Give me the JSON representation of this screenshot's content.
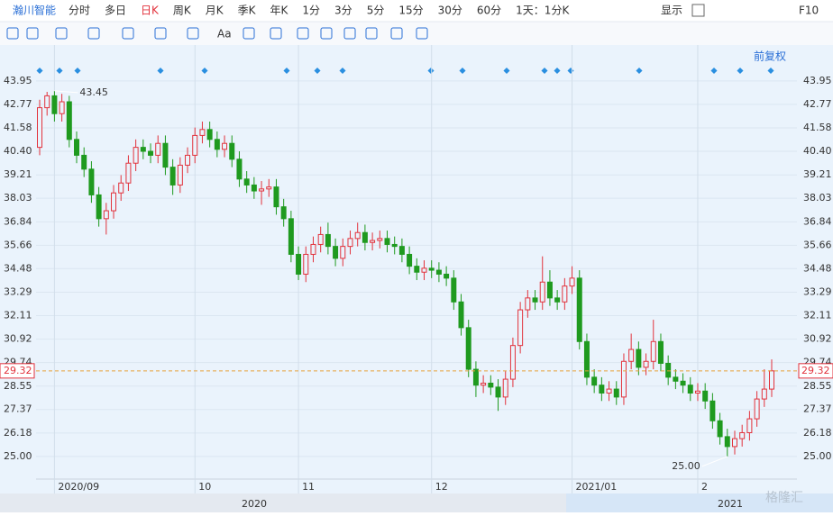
{
  "toolbar": {
    "stock": "瀚川智能",
    "tabs": [
      "分时",
      "多日",
      "日K",
      "周K",
      "月K",
      "季K",
      "年K",
      "1分",
      "3分",
      "5分",
      "15分",
      "30分",
      "60分",
      "1天：1分K"
    ],
    "display": "显示",
    "f10": "F10"
  },
  "toolbar2": {
    "font": "Aa",
    "adjust": "前复权"
  },
  "timeline": [
    "2020",
    "2021"
  ],
  "watermark": "格隆汇",
  "chart_data": {
    "type": "candlestick",
    "up_color": "#e2323c",
    "down_color": "#1f9a1f",
    "grid": true,
    "ylim": [
      23.95,
      44.4
    ],
    "yticks": [
      43.95,
      42.77,
      41.58,
      {
        "value": 40.4,
        "label": "40.40"
      },
      39.21,
      38.03,
      36.84,
      35.66,
      34.48,
      33.29,
      32.11,
      30.92,
      29.74,
      28.55,
      27.37,
      26.18,
      {
        "value": 25,
        "label": "25.00"
      }
    ],
    "last_price": 29.32,
    "annotations": [
      {
        "text": "43.45",
        "index": 2
      },
      {
        "text": "25.00",
        "index": 93
      }
    ],
    "categories": [
      null,
      null,
      "2020/09",
      null,
      null,
      null,
      null,
      null,
      null,
      null,
      null,
      null,
      null,
      null,
      null,
      null,
      null,
      null,
      null,
      null,
      null,
      "10",
      null,
      null,
      null,
      null,
      null,
      null,
      null,
      null,
      null,
      null,
      null,
      null,
      null,
      "11",
      null,
      null,
      null,
      null,
      null,
      null,
      null,
      null,
      null,
      null,
      null,
      null,
      null,
      null,
      null,
      null,
      null,
      "12",
      null,
      null,
      null,
      null,
      null,
      null,
      null,
      null,
      null,
      null,
      null,
      null,
      null,
      null,
      null,
      null,
      null,
      null,
      "2021/01",
      null,
      null,
      null,
      null,
      null,
      null,
      null,
      null,
      null,
      null,
      null,
      null,
      null,
      null,
      null,
      null,
      "2",
      null,
      null,
      null,
      null,
      null,
      null,
      null,
      null,
      null,
      null
    ],
    "open": [
      40.6,
      42.6,
      43.2,
      42.3,
      42.9,
      41.0,
      40.2,
      39.5,
      38.2,
      37.0,
      37.4,
      38.3,
      38.8,
      39.8,
      40.6,
      40.4,
      40.2,
      40.8,
      39.6,
      38.7,
      39.7,
      40.2,
      41.2,
      41.5,
      41.0,
      40.5,
      40.8,
      40.0,
      39.0,
      38.7,
      38.4,
      38.5,
      38.6,
      37.6,
      37.0,
      35.2,
      34.2,
      35.2,
      35.7,
      36.2,
      35.6,
      35.0,
      35.6,
      36.0,
      36.3,
      35.8,
      35.9,
      36.0,
      35.7,
      35.6,
      35.2,
      34.6,
      34.3,
      34.5,
      34.4,
      34.2,
      34.0,
      32.8,
      31.5,
      29.4,
      28.6,
      28.7,
      28.5,
      28.0,
      28.9,
      30.6,
      32.4,
      33.0,
      32.8,
      33.8,
      33.0,
      32.8,
      33.6,
      34.0,
      30.8,
      29.0,
      28.6,
      28.2,
      28.4,
      28.0,
      29.8,
      30.4,
      29.5,
      29.8,
      30.8,
      29.7,
      29.0,
      28.8,
      28.6,
      28.2,
      28.3,
      27.8,
      26.8,
      26.0,
      25.5,
      25.9,
      26.2,
      26.9,
      27.9,
      28.4
    ],
    "high": [
      43.0,
      43.4,
      43.45,
      43.3,
      43.2,
      41.4,
      40.6,
      39.9,
      38.6,
      37.8,
      38.7,
      39.2,
      40.2,
      41.0,
      41.0,
      40.8,
      41.2,
      41.2,
      40.0,
      40.1,
      40.6,
      41.6,
      41.9,
      41.9,
      41.4,
      41.2,
      41.2,
      40.4,
      39.4,
      39.1,
      38.9,
      39.0,
      39.0,
      38.0,
      37.4,
      35.6,
      35.6,
      36.1,
      36.6,
      36.8,
      36.0,
      36.0,
      36.4,
      36.8,
      36.7,
      36.3,
      36.4,
      36.4,
      36.1,
      36.0,
      35.6,
      35.0,
      34.9,
      34.9,
      34.8,
      34.6,
      34.4,
      33.2,
      31.9,
      29.8,
      29.1,
      29.1,
      28.9,
      29.3,
      31.0,
      32.8,
      33.4,
      33.4,
      35.1,
      34.4,
      33.4,
      34.0,
      34.6,
      34.4,
      31.2,
      29.4,
      29.0,
      28.8,
      28.8,
      30.2,
      31.2,
      30.8,
      30.2,
      31.9,
      31.2,
      30.1,
      29.4,
      29.2,
      29.0,
      28.7,
      28.7,
      28.2,
      27.2,
      26.4,
      26.3,
      26.6,
      27.3,
      28.3,
      29.4,
      29.9
    ],
    "low": [
      40.2,
      42.2,
      41.9,
      41.9,
      40.6,
      39.8,
      39.1,
      37.8,
      36.6,
      36.2,
      37.0,
      37.9,
      38.4,
      39.4,
      40.0,
      39.8,
      39.8,
      39.2,
      38.2,
      38.3,
      39.3,
      39.8,
      40.8,
      40.6,
      40.1,
      40.1,
      39.6,
      38.6,
      38.3,
      38.0,
      37.7,
      38.1,
      37.2,
      36.6,
      34.8,
      33.9,
      33.8,
      34.8,
      35.3,
      35.2,
      34.6,
      34.6,
      35.2,
      35.6,
      35.4,
      35.4,
      35.5,
      35.3,
      35.2,
      34.8,
      34.2,
      33.9,
      33.9,
      34.0,
      33.8,
      33.6,
      32.4,
      31.1,
      29.0,
      28.0,
      28.2,
      28.1,
      27.3,
      27.6,
      28.5,
      30.2,
      32.0,
      32.4,
      32.4,
      32.6,
      32.4,
      32.4,
      33.2,
      30.4,
      28.6,
      28.2,
      27.8,
      27.8,
      27.6,
      27.6,
      29.4,
      29.1,
      29.1,
      29.4,
      29.3,
      28.6,
      28.4,
      28.2,
      27.8,
      27.8,
      27.4,
      26.4,
      25.6,
      25.0,
      25.1,
      25.5,
      25.8,
      26.5,
      27.5,
      28.0
    ],
    "close": [
      42.6,
      43.2,
      42.3,
      42.9,
      41.0,
      40.2,
      39.5,
      38.2,
      37.0,
      37.4,
      38.3,
      38.8,
      39.8,
      40.6,
      40.4,
      40.2,
      40.8,
      39.6,
      38.7,
      39.7,
      40.2,
      41.2,
      41.5,
      41.0,
      40.5,
      40.8,
      40.0,
      39.0,
      38.7,
      38.4,
      38.5,
      38.6,
      37.6,
      37.0,
      35.2,
      34.2,
      35.2,
      35.7,
      36.2,
      35.6,
      35.0,
      35.6,
      36.0,
      36.3,
      35.8,
      35.9,
      36.0,
      35.7,
      35.6,
      35.2,
      34.6,
      34.3,
      34.5,
      34.4,
      34.2,
      34.0,
      32.8,
      31.5,
      29.4,
      28.6,
      28.7,
      28.5,
      28.0,
      28.9,
      30.6,
      32.4,
      33.0,
      32.8,
      33.8,
      33.0,
      32.8,
      33.6,
      34.0,
      30.8,
      29.0,
      28.6,
      28.2,
      28.4,
      28.0,
      29.8,
      30.4,
      29.5,
      29.8,
      30.8,
      29.7,
      29.0,
      28.8,
      28.6,
      28.2,
      28.3,
      27.8,
      26.8,
      26.0,
      25.5,
      25.9,
      26.2,
      26.9,
      27.9,
      28.4,
      29.32
    ]
  }
}
